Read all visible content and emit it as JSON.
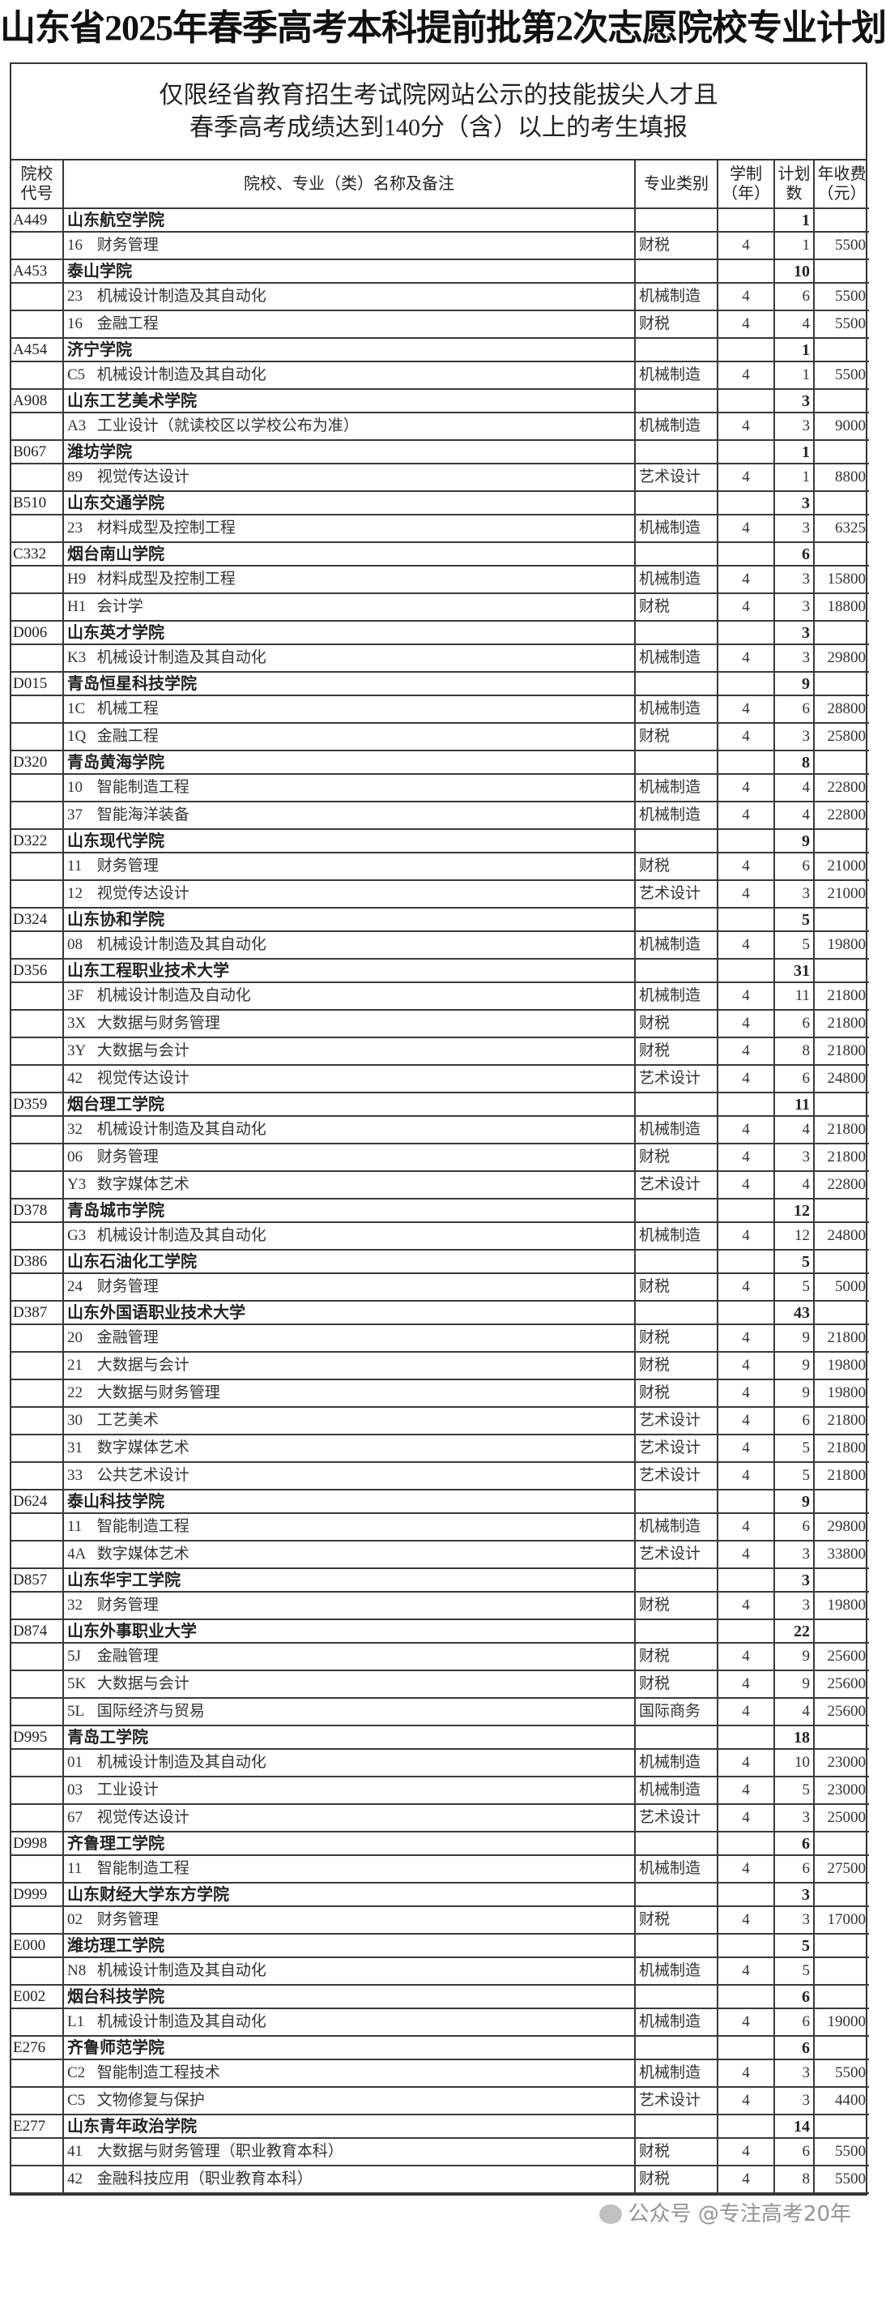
{
  "title": "山东省2025年春季高考本科提前批第2次志愿院校专业计划",
  "subtitle": [
    "仅限经省教育招生考试院网站公示的技能拔尖人才且",
    "春季高考成绩达到140分（含）以上的考生填报"
  ],
  "headers": {
    "code": [
      "院校",
      "代号"
    ],
    "name": "院校、专业（类）名称及备注",
    "category": "专业类别",
    "years": [
      "学制",
      "（年）"
    ],
    "plan": [
      "计划",
      "数"
    ],
    "fee": [
      "年收费",
      "（元）"
    ]
  },
  "schools": [
    {
      "code": "A449",
      "name": "山东航空学院",
      "plan": "1",
      "majors": [
        [
          "16",
          "财务管理",
          "财税",
          "4",
          "1",
          "5500"
        ]
      ]
    },
    {
      "code": "A453",
      "name": "泰山学院",
      "plan": "10",
      "majors": [
        [
          "23",
          "机械设计制造及其自动化",
          "机械制造",
          "4",
          "6",
          "5500"
        ],
        [
          "16",
          "金融工程",
          "财税",
          "4",
          "4",
          "5500"
        ]
      ]
    },
    {
      "code": "A454",
      "name": "济宁学院",
      "plan": "1",
      "majors": [
        [
          "C5",
          "机械设计制造及其自动化",
          "机械制造",
          "4",
          "1",
          "5500"
        ]
      ]
    },
    {
      "code": "A908",
      "name": "山东工艺美术学院",
      "plan": "3",
      "majors": [
        [
          "A3",
          "工业设计（就读校区以学校公布为准）",
          "机械制造",
          "4",
          "3",
          "9000"
        ]
      ]
    },
    {
      "code": "B067",
      "name": "潍坊学院",
      "plan": "1",
      "majors": [
        [
          "89",
          "视觉传达设计",
          "艺术设计",
          "4",
          "1",
          "8800"
        ]
      ]
    },
    {
      "code": "B510",
      "name": "山东交通学院",
      "plan": "3",
      "majors": [
        [
          "23",
          "材料成型及控制工程",
          "机械制造",
          "4",
          "3",
          "6325"
        ]
      ]
    },
    {
      "code": "C332",
      "name": "烟台南山学院",
      "plan": "6",
      "majors": [
        [
          "H9",
          "材料成型及控制工程",
          "机械制造",
          "4",
          "3",
          "15800"
        ],
        [
          "H1",
          "会计学",
          "财税",
          "4",
          "3",
          "18800"
        ]
      ]
    },
    {
      "code": "D006",
      "name": "山东英才学院",
      "plan": "3",
      "majors": [
        [
          "K3",
          "机械设计制造及其自动化",
          "机械制造",
          "4",
          "3",
          "29800"
        ]
      ]
    },
    {
      "code": "D015",
      "name": "青岛恒星科技学院",
      "plan": "9",
      "majors": [
        [
          "1C",
          "机械工程",
          "机械制造",
          "4",
          "6",
          "28800"
        ],
        [
          "1Q",
          "金融工程",
          "财税",
          "4",
          "3",
          "25800"
        ]
      ]
    },
    {
      "code": "D320",
      "name": "青岛黄海学院",
      "plan": "8",
      "majors": [
        [
          "10",
          "智能制造工程",
          "机械制造",
          "4",
          "4",
          "22800"
        ],
        [
          "37",
          "智能海洋装备",
          "机械制造",
          "4",
          "4",
          "22800"
        ]
      ]
    },
    {
      "code": "D322",
      "name": "山东现代学院",
      "plan": "9",
      "majors": [
        [
          "11",
          "财务管理",
          "财税",
          "4",
          "6",
          "21000"
        ],
        [
          "12",
          "视觉传达设计",
          "艺术设计",
          "4",
          "3",
          "21000"
        ]
      ]
    },
    {
      "code": "D324",
      "name": "山东协和学院",
      "plan": "5",
      "majors": [
        [
          "08",
          "机械设计制造及其自动化",
          "机械制造",
          "4",
          "5",
          "19800"
        ]
      ]
    },
    {
      "code": "D356",
      "name": "山东工程职业技术大学",
      "plan": "31",
      "majors": [
        [
          "3F",
          "机械设计制造及自动化",
          "机械制造",
          "4",
          "11",
          "21800"
        ],
        [
          "3X",
          "大数据与财务管理",
          "财税",
          "4",
          "6",
          "21800"
        ],
        [
          "3Y",
          "大数据与会计",
          "财税",
          "4",
          "8",
          "21800"
        ],
        [
          "42",
          "视觉传达设计",
          "艺术设计",
          "4",
          "6",
          "24800"
        ]
      ]
    },
    {
      "code": "D359",
      "name": "烟台理工学院",
      "plan": "11",
      "majors": [
        [
          "32",
          "机械设计制造及其自动化",
          "机械制造",
          "4",
          "4",
          "21800"
        ],
        [
          "06",
          "财务管理",
          "财税",
          "4",
          "3",
          "21800"
        ],
        [
          "Y3",
          "数字媒体艺术",
          "艺术设计",
          "4",
          "4",
          "22800"
        ]
      ]
    },
    {
      "code": "D378",
      "name": "青岛城市学院",
      "plan": "12",
      "majors": [
        [
          "G3",
          "机械设计制造及其自动化",
          "机械制造",
          "4",
          "12",
          "24800"
        ]
      ]
    },
    {
      "code": "D386",
      "name": "山东石油化工学院",
      "plan": "5",
      "majors": [
        [
          "24",
          "财务管理",
          "财税",
          "4",
          "5",
          "5000"
        ]
      ]
    },
    {
      "code": "D387",
      "name": "山东外国语职业技术大学",
      "plan": "43",
      "majors": [
        [
          "20",
          "金融管理",
          "财税",
          "4",
          "9",
          "21800"
        ],
        [
          "21",
          "大数据与会计",
          "财税",
          "4",
          "9",
          "19800"
        ],
        [
          "22",
          "大数据与财务管理",
          "财税",
          "4",
          "9",
          "19800"
        ],
        [
          "30",
          "工艺美术",
          "艺术设计",
          "4",
          "6",
          "21800"
        ],
        [
          "31",
          "数字媒体艺术",
          "艺术设计",
          "4",
          "5",
          "21800"
        ],
        [
          "33",
          "公共艺术设计",
          "艺术设计",
          "4",
          "5",
          "21800"
        ]
      ]
    },
    {
      "code": "D624",
      "name": "泰山科技学院",
      "plan": "9",
      "majors": [
        [
          "11",
          "智能制造工程",
          "机械制造",
          "4",
          "6",
          "29800"
        ],
        [
          "4A",
          "数字媒体艺术",
          "艺术设计",
          "4",
          "3",
          "33800"
        ]
      ]
    },
    {
      "code": "D857",
      "name": "山东华宇工学院",
      "plan": "3",
      "majors": [
        [
          "32",
          "财务管理",
          "财税",
          "4",
          "3",
          "19800"
        ]
      ]
    },
    {
      "code": "D874",
      "name": "山东外事职业大学",
      "plan": "22",
      "majors": [
        [
          "5J",
          "金融管理",
          "财税",
          "4",
          "9",
          "25600"
        ],
        [
          "5K",
          "大数据与会计",
          "财税",
          "4",
          "9",
          "25600"
        ],
        [
          "5L",
          "国际经济与贸易",
          "国际商务",
          "4",
          "4",
          "25600"
        ]
      ]
    },
    {
      "code": "D995",
      "name": "青岛工学院",
      "plan": "18",
      "majors": [
        [
          "01",
          "机械设计制造及其自动化",
          "机械制造",
          "4",
          "10",
          "23000"
        ],
        [
          "03",
          "工业设计",
          "机械制造",
          "4",
          "5",
          "23000"
        ],
        [
          "67",
          "视觉传达设计",
          "艺术设计",
          "4",
          "3",
          "25000"
        ]
      ]
    },
    {
      "code": "D998",
      "name": "齐鲁理工学院",
      "plan": "6",
      "majors": [
        [
          "11",
          "智能制造工程",
          "机械制造",
          "4",
          "6",
          "27500"
        ]
      ]
    },
    {
      "code": "D999",
      "name": "山东财经大学东方学院",
      "plan": "3",
      "majors": [
        [
          "02",
          "财务管理",
          "财税",
          "4",
          "3",
          "17000"
        ]
      ]
    },
    {
      "code": "E000",
      "name": "潍坊理工学院",
      "plan": "5",
      "majors": [
        [
          "N8",
          "机械设计制造及其自动化",
          "机械制造",
          "4",
          "5",
          ""
        ]
      ]
    },
    {
      "code": "E002",
      "name": "烟台科技学院",
      "plan": "6",
      "majors": [
        [
          "L1",
          "机械设计制造及其自动化",
          "机械制造",
          "4",
          "6",
          "19000"
        ]
      ]
    },
    {
      "code": "E276",
      "name": "齐鲁师范学院",
      "plan": "6",
      "majors": [
        [
          "C2",
          "智能制造工程技术",
          "机械制造",
          "4",
          "3",
          "5500"
        ],
        [
          "C5",
          "文物修复与保护",
          "艺术设计",
          "4",
          "3",
          "4400"
        ]
      ]
    },
    {
      "code": "E277",
      "name": "山东青年政治学院",
      "plan": "14",
      "majors": [
        [
          "41",
          "大数据与财务管理（职业教育本科）",
          "财税",
          "4",
          "6",
          "5500"
        ],
        [
          "42",
          "金融科技应用（职业教育本科）",
          "财税",
          "4",
          "8",
          "5500"
        ]
      ]
    }
  ],
  "watermark": "公众号 @专注高考20年"
}
